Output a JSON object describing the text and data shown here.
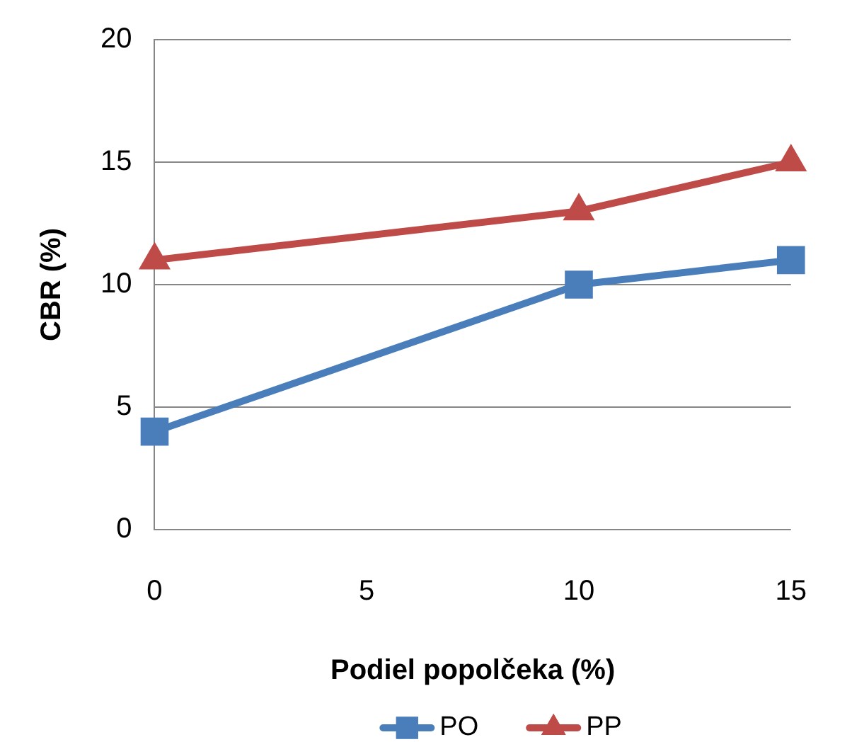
{
  "chart_data": {
    "type": "line",
    "xlabel": "Podiel popolčeka (%)",
    "ylabel": "CBR (%)",
    "x": [
      0,
      10,
      15
    ],
    "series": [
      {
        "name": "PO",
        "color": "#4a7ebb",
        "marker": "square",
        "values": [
          4,
          10,
          11
        ]
      },
      {
        "name": "PP",
        "color": "#be4b48",
        "marker": "triangle",
        "values": [
          11,
          13,
          15
        ]
      }
    ],
    "xlim": [
      0,
      15
    ],
    "xticks": [
      0,
      5,
      10,
      15
    ],
    "ylim": [
      0,
      20
    ],
    "yticks": [
      0,
      5,
      10,
      15,
      20
    ],
    "grid": "y",
    "legend": "bottom"
  }
}
